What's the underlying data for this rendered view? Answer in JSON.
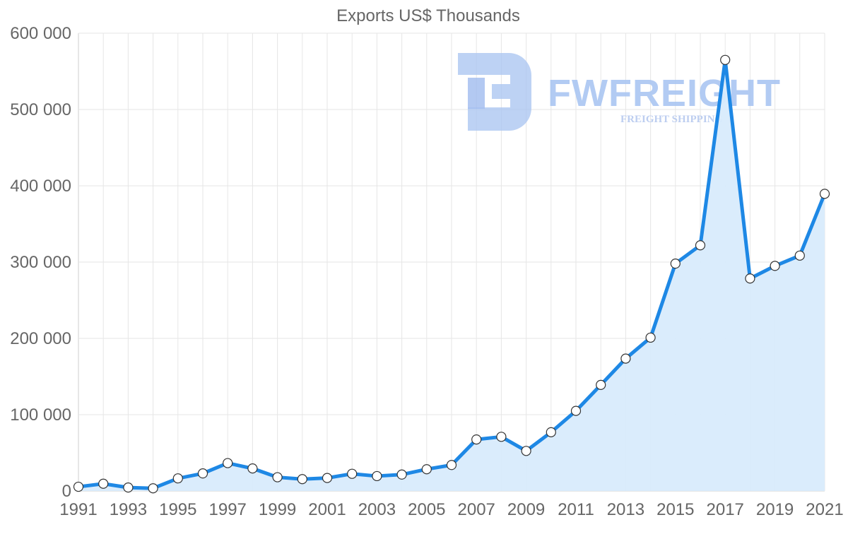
{
  "chart_data": {
    "type": "area",
    "title": "Exports US$ Thousands",
    "xlabel": "",
    "ylabel": "",
    "x": [
      1991,
      1992,
      1993,
      1994,
      1995,
      1996,
      1997,
      1998,
      1999,
      2000,
      2001,
      2002,
      2003,
      2004,
      2005,
      2006,
      2007,
      2008,
      2009,
      2010,
      2011,
      2012,
      2013,
      2014,
      2015,
      2016,
      2017,
      2018,
      2019,
      2020,
      2021
    ],
    "series": [
      {
        "name": "Exports",
        "values": [
          5500,
          9500,
          4500,
          3500,
          16500,
          23000,
          36500,
          29500,
          18000,
          15500,
          17000,
          22500,
          19500,
          21500,
          28500,
          34000,
          67500,
          71000,
          52500,
          77000,
          105000,
          139000,
          173500,
          201000,
          298000,
          322000,
          565000,
          278500,
          295000,
          308500,
          389500
        ]
      }
    ],
    "ylim": [
      0,
      600000
    ],
    "yticks": [
      0,
      100000,
      200000,
      300000,
      400000,
      500000,
      600000
    ],
    "ytick_labels": [
      "0",
      "100 000",
      "200 000",
      "300 000",
      "400 000",
      "500 000",
      "600 000"
    ],
    "xticks": [
      1991,
      1993,
      1995,
      1997,
      1999,
      2001,
      2003,
      2005,
      2007,
      2009,
      2011,
      2013,
      2015,
      2017,
      2019,
      2021
    ],
    "xtick_labels": [
      "1991",
      "1993",
      "1995",
      "1997",
      "1999",
      "2001",
      "2003",
      "2005",
      "2007",
      "2009",
      "2011",
      "2013",
      "2015",
      "2017",
      "2019",
      "2021"
    ],
    "grid": true,
    "legend": "none"
  },
  "watermark": {
    "brand": "FWFREIGHT",
    "tagline": "FREIGHT SHIPPING"
  },
  "colors": {
    "line": "#1e88e5",
    "area": "#d8ebfc",
    "watermark": "#aac6f2",
    "watermark_sub": "#b6c9ef"
  }
}
